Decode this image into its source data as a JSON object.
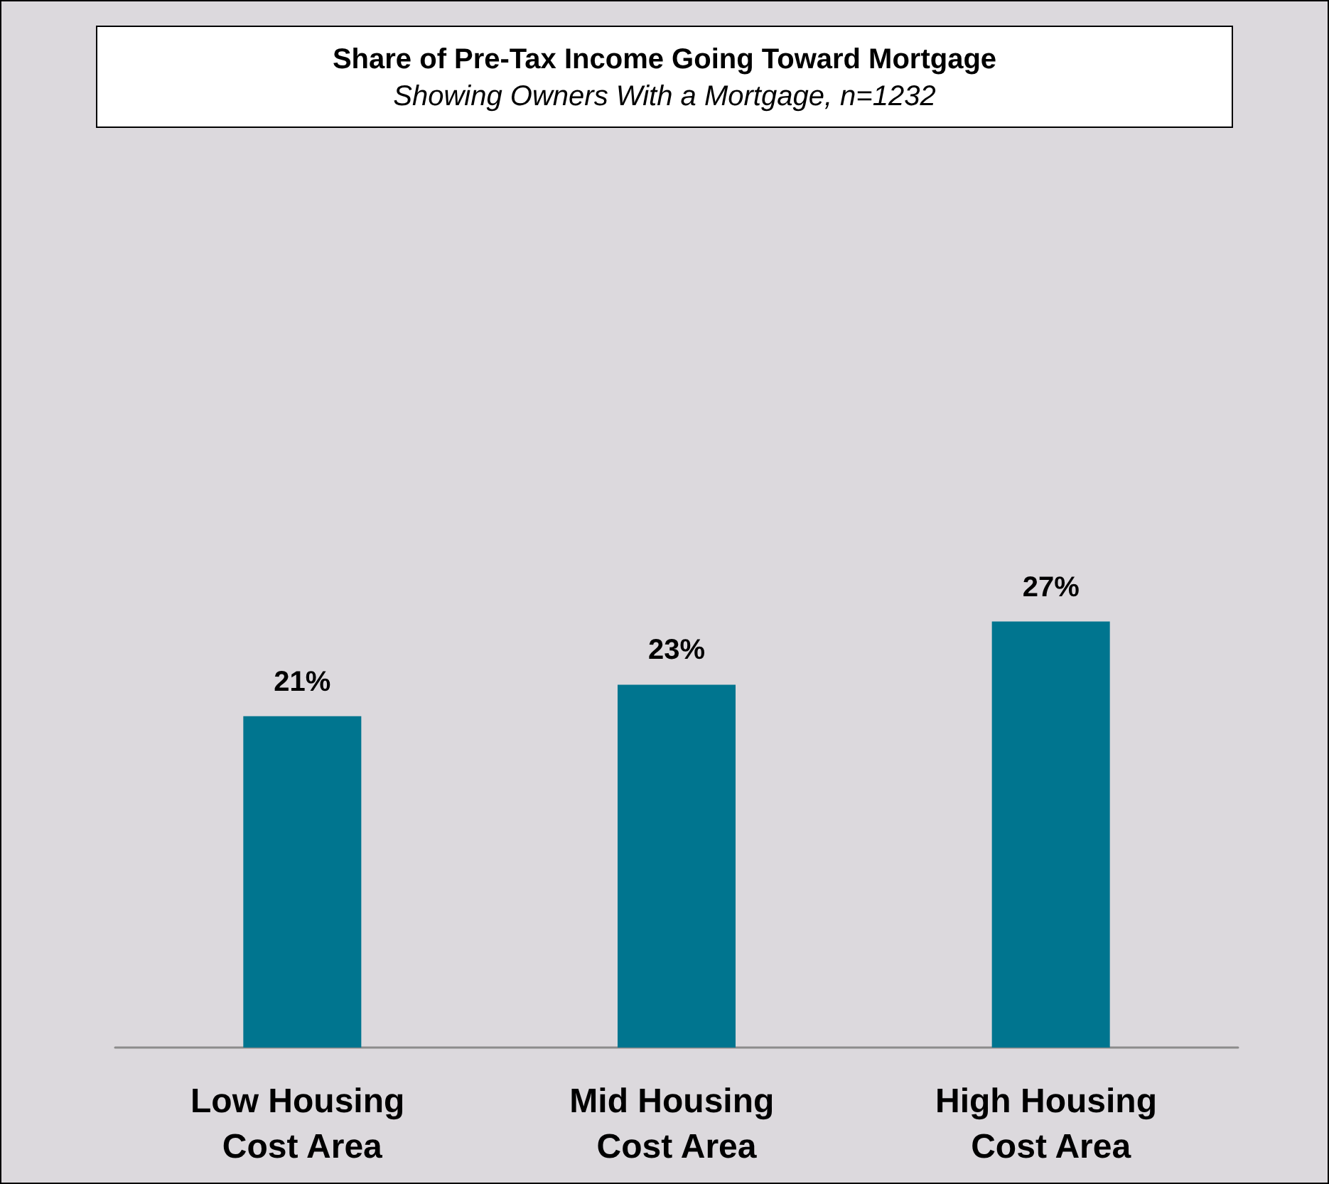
{
  "chart_data": {
    "type": "bar",
    "title": "Share of Pre-Tax Income Going Toward Mortgage",
    "subtitle": "Showing Owners With a Mortgage, n=1232",
    "categories": [
      "Low Housing Cost Area",
      "Mid Housing Cost Area",
      "High Housing Cost Area"
    ],
    "values": [
      21,
      23,
      27
    ],
    "value_labels": [
      "21%",
      "23%",
      "27%"
    ],
    "color": "#00758f",
    "tick_labels": "x"
  }
}
